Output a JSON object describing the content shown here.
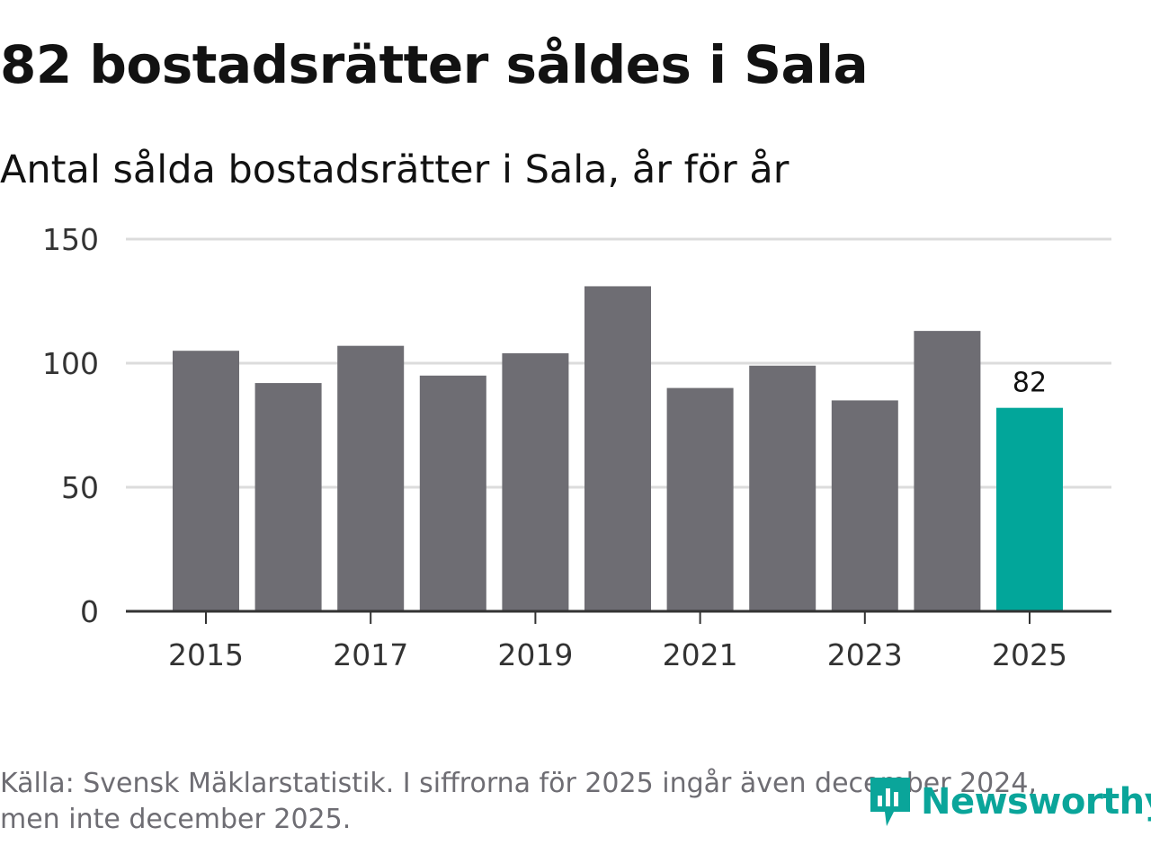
{
  "header": {
    "title": "82 bostadsrätter såldes i Sala",
    "subtitle": "Antal sålda bostadsrätter i Sala, år för år"
  },
  "colors": {
    "bar_default": "#6e6d73",
    "bar_highlight": "#02a69a",
    "grid": "#dcdcdc",
    "axis": "#333333",
    "brand": "#0aa59a"
  },
  "chart_data": {
    "type": "bar",
    "title": "82 bostadsrätter såldes i Sala",
    "subtitle": "Antal sålda bostadsrätter i Sala, år för år",
    "xlabel": "",
    "ylabel": "",
    "categories": [
      "2015",
      "2016",
      "2017",
      "2018",
      "2019",
      "2020",
      "2021",
      "2022",
      "2023",
      "2024",
      "2025"
    ],
    "values": [
      105,
      92,
      107,
      95,
      104,
      131,
      90,
      99,
      85,
      113,
      82
    ],
    "highlight_index": 10,
    "data_labels": [
      {
        "index": 10,
        "text": "82"
      }
    ],
    "x_tick_labels": [
      "2015",
      "2017",
      "2019",
      "2021",
      "2023",
      "2025"
    ],
    "x_tick_indices": [
      0,
      2,
      4,
      6,
      8,
      10
    ],
    "y_ticks": [
      0,
      50,
      100,
      150
    ],
    "ylim": [
      0,
      150
    ],
    "grid": true
  },
  "footer": {
    "source_line1": "Källa: Svensk Mäklarstatistik. I siffrorna för 2025 ingår även december 2024,",
    "source_line2": "men inte december 2025."
  },
  "brand": {
    "logo_icon": "newsworthy-logo-icon",
    "name": "Newsworthy"
  }
}
